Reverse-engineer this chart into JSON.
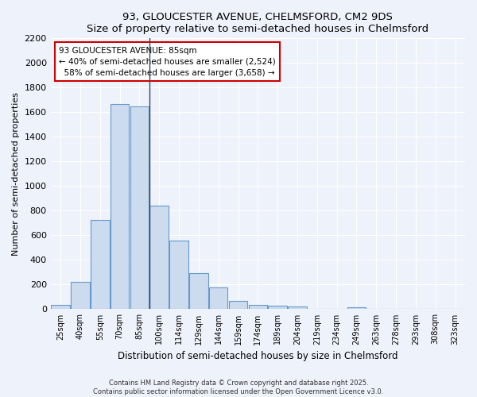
{
  "title": "93, GLOUCESTER AVENUE, CHELMSFORD, CM2 9DS",
  "subtitle": "Size of property relative to semi-detached houses in Chelmsford",
  "xlabel": "Distribution of semi-detached houses by size in Chelmsford",
  "ylabel": "Number of semi-detached properties",
  "bar_color": "#ccdcee",
  "bar_edge_color": "#6699cc",
  "background_color": "#eef2fa",
  "grid_color": "#ffffff",
  "categories": [
    "25sqm",
    "40sqm",
    "55sqm",
    "70sqm",
    "85sqm",
    "100sqm",
    "114sqm",
    "129sqm",
    "144sqm",
    "159sqm",
    "174sqm",
    "189sqm",
    "204sqm",
    "219sqm",
    "234sqm",
    "249sqm",
    "263sqm",
    "278sqm",
    "293sqm",
    "308sqm",
    "323sqm"
  ],
  "values": [
    35,
    220,
    725,
    1670,
    1650,
    840,
    555,
    295,
    180,
    70,
    35,
    30,
    20,
    0,
    0,
    15,
    0,
    0,
    0,
    0,
    0
  ],
  "ylim": [
    0,
    2200
  ],
  "yticks": [
    0,
    200,
    400,
    600,
    800,
    1000,
    1200,
    1400,
    1600,
    1800,
    2000,
    2200
  ],
  "vline_x": 4.5,
  "property_label": "93 GLOUCESTER AVENUE: 85sqm",
  "pct_smaller": 40,
  "pct_larger": 58,
  "count_smaller": 2524,
  "count_larger": 3658,
  "annotation_box_color": "#ffffff",
  "annotation_box_edge": "#cc0000",
  "footer1": "Contains HM Land Registry data © Crown copyright and database right 2025.",
  "footer2": "Contains public sector information licensed under the Open Government Licence v3.0."
}
